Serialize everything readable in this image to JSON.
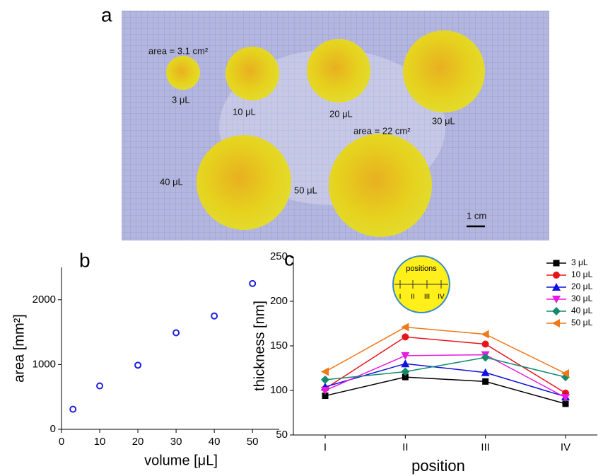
{
  "panel_labels": [
    "a",
    "b",
    "c"
  ],
  "photo": {
    "labels": [
      "area = 3.1 cm²",
      "3 μL",
      "10 μL",
      "20 μL",
      "30 μL",
      "area = 22 cm²",
      "40 μL",
      "50 μL",
      "1 cm"
    ]
  },
  "inset": {
    "title": "positions",
    "labels": [
      "I",
      "II",
      "III",
      "IV"
    ]
  },
  "chart_data": [
    {
      "type": "scatter",
      "x_label": "volume [μL]",
      "y_label": "area [mm²]",
      "x": [
        3,
        10,
        20,
        30,
        40,
        50
      ],
      "values": [
        310,
        670,
        990,
        1490,
        1750,
        2250
      ],
      "color": "#1f1fe0",
      "marker": "open-circle",
      "xlim": [
        0,
        57
      ],
      "xticks": [
        0,
        10,
        20,
        30,
        40,
        50
      ],
      "ylim": [
        0,
        2500
      ],
      "yticks": [
        0,
        1000,
        2000
      ]
    },
    {
      "type": "line",
      "x_label": "position",
      "y_label": "thickness [nm]",
      "categories": [
        "I",
        "II",
        "III",
        "IV"
      ],
      "ylim": [
        50,
        250
      ],
      "yticks": [
        50,
        100,
        150,
        200,
        250
      ],
      "series": [
        {
          "name": "3 μL",
          "color": "#000000",
          "marker": "square",
          "values": [
            94,
            115,
            110,
            85
          ]
        },
        {
          "name": "10 μL",
          "color": "#e8141c",
          "marker": "circle",
          "values": [
            102,
            160,
            152,
            97
          ]
        },
        {
          "name": "20 μL",
          "color": "#1010e0",
          "marker": "triangle-up",
          "values": [
            104,
            130,
            120,
            93
          ]
        },
        {
          "name": "30 μL",
          "color": "#e81ce0",
          "marker": "triangle-down",
          "values": [
            100,
            139,
            140,
            92
          ]
        },
        {
          "name": "40 μL",
          "color": "#138a6e",
          "marker": "diamond",
          "values": [
            112,
            121,
            137,
            115
          ]
        },
        {
          "name": "50 μL",
          "color": "#f07818",
          "marker": "triangle-left",
          "values": [
            121,
            171,
            163,
            119
          ]
        }
      ]
    }
  ]
}
